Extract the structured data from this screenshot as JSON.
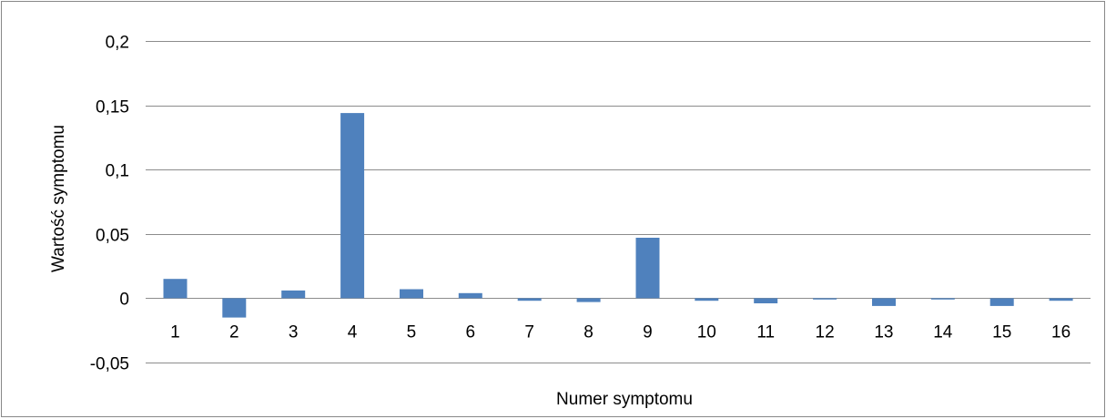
{
  "chart_data": {
    "type": "bar",
    "title": "",
    "xlabel": "Numer symptomu",
    "ylabel": "Wartość symptomu",
    "categories": [
      "1",
      "2",
      "3",
      "4",
      "5",
      "6",
      "7",
      "8",
      "9",
      "10",
      "11",
      "12",
      "13",
      "14",
      "15",
      "16"
    ],
    "values": [
      0.015,
      -0.015,
      0.006,
      0.144,
      0.007,
      0.004,
      -0.002,
      -0.003,
      0.047,
      -0.002,
      -0.004,
      -0.001,
      -0.006,
      -0.001,
      -0.006,
      -0.002
    ],
    "ylim": [
      -0.05,
      0.2
    ],
    "yticks": [
      -0.05,
      0,
      0.05,
      0.1,
      0.15,
      0.2
    ],
    "ytick_labels": [
      "-0,05",
      "0",
      "0,05",
      "0,1",
      "0,15",
      "0,2"
    ],
    "grid": true,
    "legend": "none",
    "colors": {
      "bar": "#4f81bd",
      "grid": "#8c8c8c",
      "frame": "#888888",
      "text": "#000000"
    }
  }
}
